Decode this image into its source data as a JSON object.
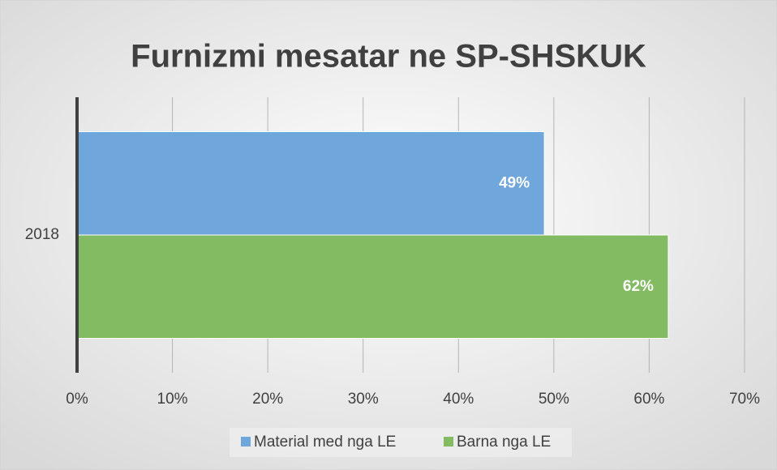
{
  "chart_data": {
    "type": "bar",
    "orientation": "horizontal",
    "title": "Furnizmi mesatar ne SP-SHSKUK",
    "categories": [
      "2018"
    ],
    "series": [
      {
        "name": "Material med nga LE",
        "color": "#6fa6db",
        "values": [
          49
        ],
        "value_labels": [
          "49%"
        ]
      },
      {
        "name": "Barna nga LE",
        "color": "#83bb63",
        "values": [
          62
        ],
        "value_labels": [
          "62%"
        ]
      }
    ],
    "xlim": [
      0,
      70
    ],
    "xticks": [
      {
        "value": 0,
        "label": "0%"
      },
      {
        "value": 10,
        "label": "10%"
      },
      {
        "value": 20,
        "label": "20%"
      },
      {
        "value": 30,
        "label": "30%"
      },
      {
        "value": 40,
        "label": "40%"
      },
      {
        "value": 50,
        "label": "50%"
      },
      {
        "value": 60,
        "label": "60%"
      },
      {
        "value": 70,
        "label": "70%"
      }
    ],
    "grid": true,
    "legend": "bottom"
  }
}
